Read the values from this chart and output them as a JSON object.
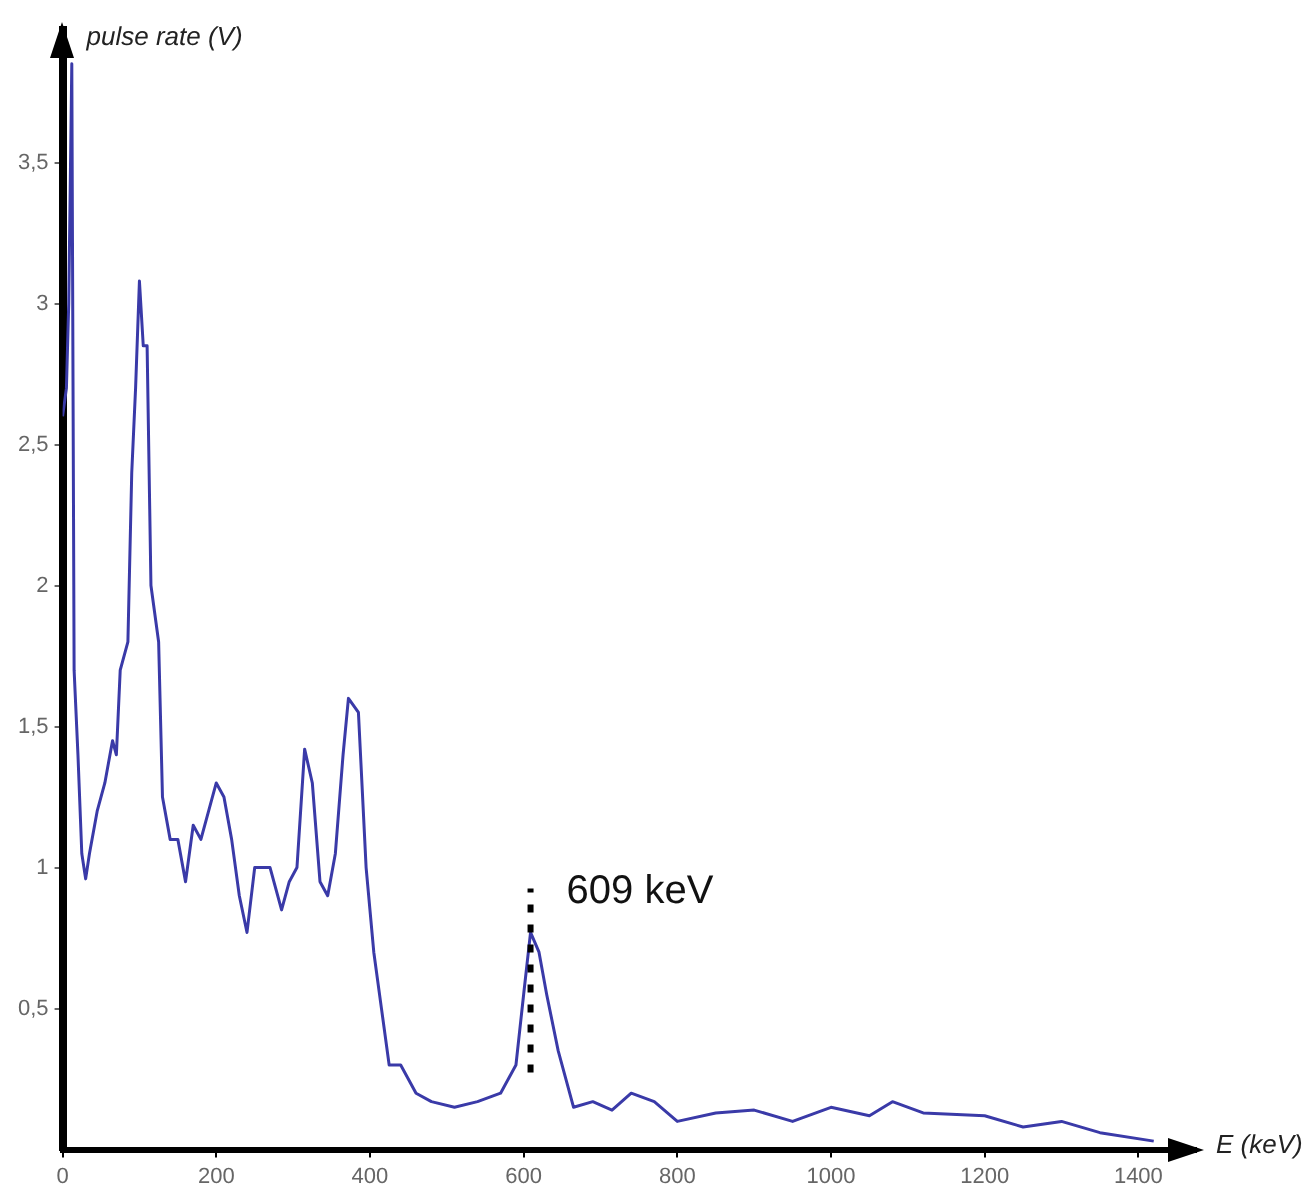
{
  "chart_data": {
    "type": "line",
    "xlabel": "E (keV)",
    "ylabel": "pulse rate (V)",
    "x": [
      0,
      5,
      8,
      12,
      15,
      20,
      25,
      30,
      35,
      45,
      55,
      65,
      70,
      75,
      85,
      90,
      95,
      100,
      105,
      110,
      115,
      125,
      130,
      140,
      150,
      160,
      170,
      180,
      190,
      200,
      210,
      220,
      230,
      240,
      250,
      270,
      285,
      295,
      305,
      315,
      325,
      335,
      345,
      355,
      365,
      372,
      385,
      395,
      405,
      415,
      425,
      440,
      460,
      480,
      510,
      540,
      570,
      590,
      600,
      609,
      620,
      630,
      645,
      665,
      690,
      715,
      740,
      770,
      800,
      850,
      900,
      950,
      1000,
      1050,
      1080,
      1120,
      1200,
      1250,
      1300,
      1350,
      1420
    ],
    "series": [
      {
        "color": "#3a3aa8",
        "values": [
          2.6,
          2.7,
          3.0,
          3.85,
          1.7,
          1.4,
          1.05,
          0.96,
          1.05,
          1.2,
          1.3,
          1.45,
          1.4,
          1.7,
          1.8,
          2.4,
          2.7,
          3.08,
          2.85,
          2.85,
          2.0,
          1.8,
          1.25,
          1.1,
          1.1,
          0.95,
          1.15,
          1.1,
          1.2,
          1.3,
          1.25,
          1.1,
          0.9,
          0.77,
          1.0,
          1.0,
          0.85,
          0.95,
          1.0,
          1.42,
          1.3,
          0.95,
          0.9,
          1.05,
          1.4,
          1.6,
          1.55,
          1.0,
          0.7,
          0.5,
          0.3,
          0.3,
          0.2,
          0.17,
          0.15,
          0.17,
          0.2,
          0.3,
          0.55,
          0.77,
          0.7,
          0.55,
          0.35,
          0.15,
          0.17,
          0.14,
          0.2,
          0.17,
          0.1,
          0.13,
          0.14,
          0.1,
          0.15,
          0.12,
          0.17,
          0.13,
          0.12,
          0.08,
          0.1,
          0.06,
          0.03
        ]
      }
    ],
    "xlim": [
      0,
      1475
    ],
    "ylim": [
      0,
      3.97
    ],
    "xticks": [
      0,
      200,
      400,
      600,
      800,
      1000,
      1200,
      1400
    ],
    "yticks": [
      {
        "value": 0.5,
        "label": "0,5"
      },
      {
        "value": 1,
        "label": "1"
      },
      {
        "value": 1.5,
        "label": "1,5"
      },
      {
        "value": 2,
        "label": "2"
      },
      {
        "value": 2.5,
        "label": "2,5"
      },
      {
        "value": 3,
        "label": "3"
      },
      {
        "value": 3.5,
        "label": "3,5"
      }
    ],
    "annotations": [
      {
        "text": "609 keV",
        "x": 609,
        "y": 0.77
      }
    ],
    "grid": false,
    "legend": false,
    "marker": "none",
    "line_style": "solid"
  }
}
